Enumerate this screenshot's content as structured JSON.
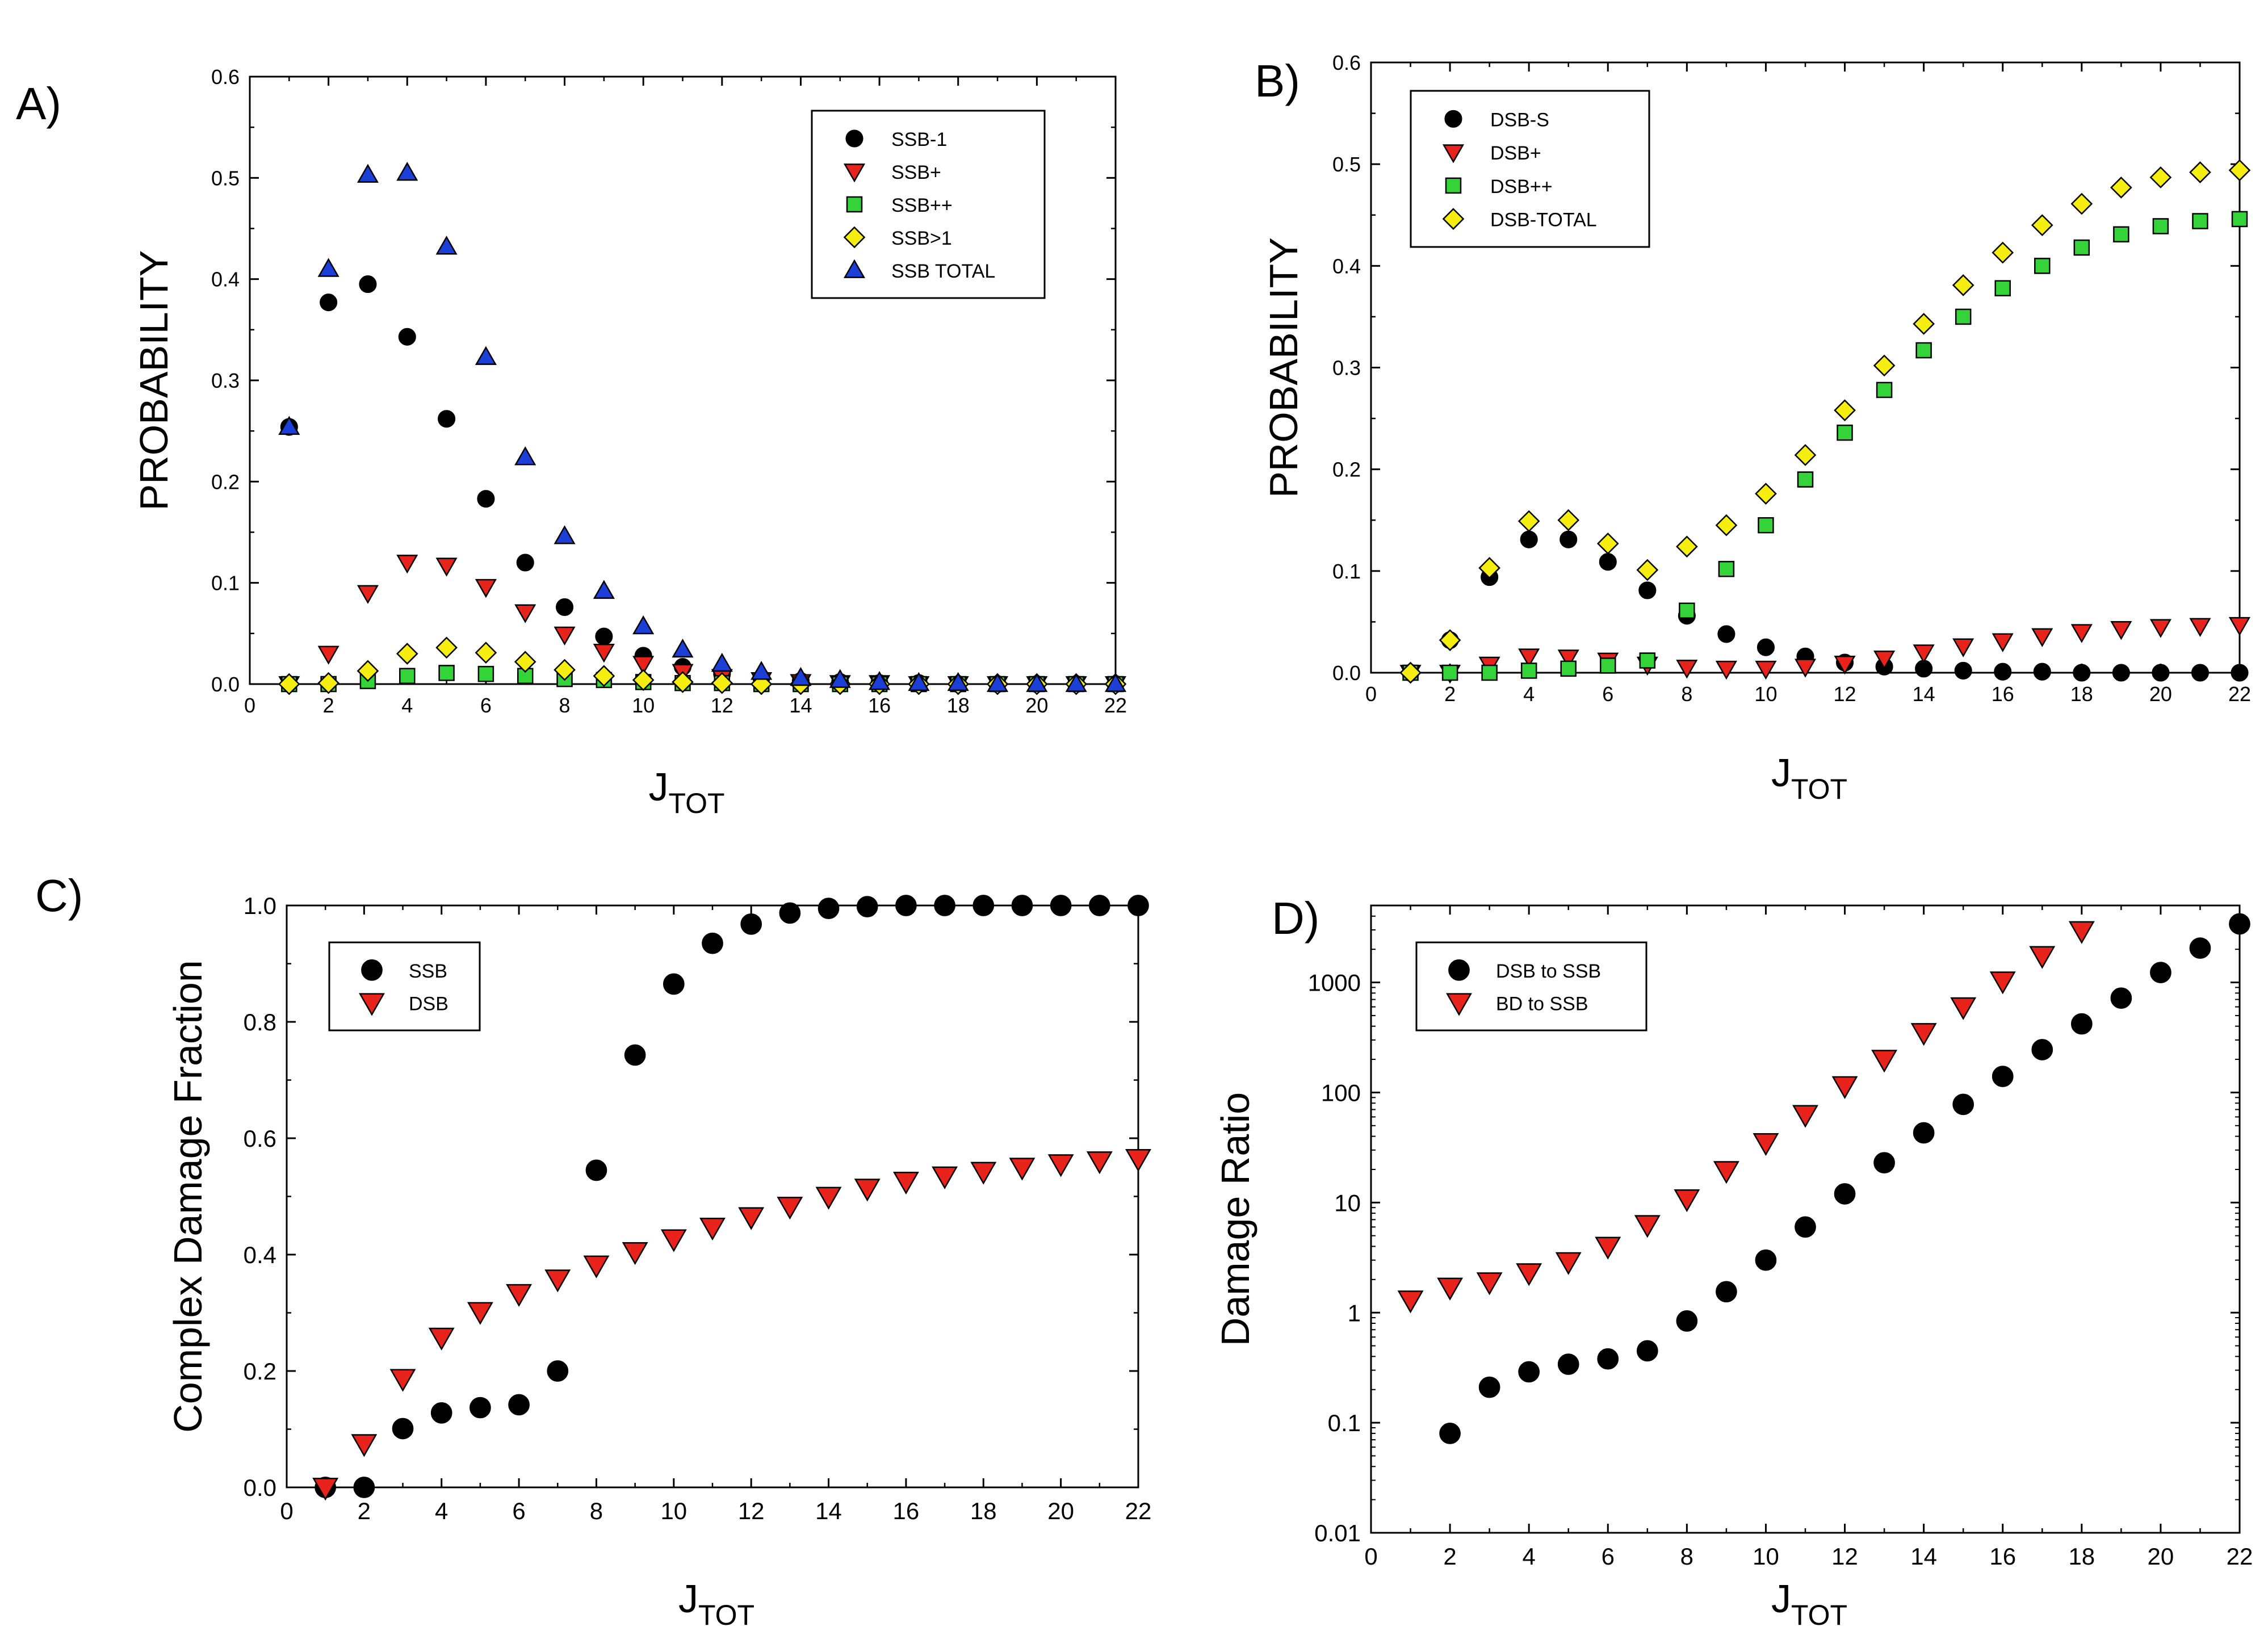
{
  "figure": {
    "colors": {
      "black": "#000000",
      "red": "#e8231c",
      "green": "#35d33a",
      "yellow": "#f5ee10",
      "blue": "#1c3fd8"
    }
  },
  "chart_data": [
    {
      "type": "scatter",
      "panel_label": "A)",
      "ylabel": "PROBABILITY",
      "xlabel_main": "J",
      "xlabel_sub": "TOT",
      "xlim": [
        0,
        22
      ],
      "ylim": [
        0,
        0.6
      ],
      "yscale": "linear",
      "xticks": [
        0,
        2,
        4,
        6,
        8,
        10,
        12,
        14,
        16,
        18,
        20,
        22
      ],
      "xtick_labels": [
        "0",
        "2",
        "4",
        "6",
        "8",
        "10",
        "12",
        "14",
        "16",
        "18",
        "20",
        "22"
      ],
      "yticks": [
        0,
        0.1,
        0.2,
        0.3,
        0.4,
        0.5,
        0.6
      ],
      "ytick_labels": [
        "0.0",
        "0.1",
        "0.2",
        "0.3",
        "0.4",
        "0.5",
        "0.6"
      ],
      "legend_position": "top-right",
      "x": [
        1,
        2,
        3,
        4,
        5,
        6,
        7,
        8,
        9,
        10,
        11,
        12,
        13,
        14,
        15,
        16,
        17,
        18,
        19,
        20,
        21,
        22
      ],
      "series": [
        {
          "name": "SSB-1",
          "marker": "circle",
          "color": "black",
          "values": [
            0.254,
            0.377,
            0.395,
            0.343,
            0.262,
            0.183,
            0.12,
            0.076,
            0.047,
            0.028,
            0.017,
            0.01,
            0.006,
            0.003,
            0.002,
            0.001,
            0.001,
            0.0,
            0.0,
            0.0,
            0.0,
            0.0
          ]
        },
        {
          "name": "SSB+",
          "marker": "triangle-down",
          "color": "red",
          "values": [
            0.0,
            0.03,
            0.09,
            0.12,
            0.117,
            0.096,
            0.071,
            0.049,
            0.032,
            0.02,
            0.012,
            0.007,
            0.004,
            0.002,
            0.001,
            0.001,
            0.0,
            0.0,
            0.0,
            0.0,
            0.0,
            0.0
          ]
        },
        {
          "name": "SSB++",
          "marker": "square",
          "color": "green",
          "values": [
            0.0,
            0.0,
            0.003,
            0.008,
            0.011,
            0.01,
            0.008,
            0.005,
            0.004,
            0.002,
            0.001,
            0.001,
            0.0,
            0.0,
            0.0,
            0.0,
            0.0,
            0.0,
            0.0,
            0.0,
            0.0,
            0.0
          ]
        },
        {
          "name": "SSB>1",
          "marker": "diamond",
          "color": "yellow",
          "values": [
            0.0,
            0.001,
            0.013,
            0.03,
            0.036,
            0.031,
            0.022,
            0.014,
            0.008,
            0.004,
            0.002,
            0.001,
            0.0,
            0.0,
            0.0,
            0.0,
            0.0,
            0.0,
            0.0,
            0.0,
            0.0,
            0.0
          ]
        },
        {
          "name": "SSB TOTAL",
          "marker": "triangle-up",
          "color": "blue",
          "values": [
            0.254,
            0.41,
            0.503,
            0.505,
            0.432,
            0.323,
            0.224,
            0.146,
            0.092,
            0.057,
            0.034,
            0.02,
            0.012,
            0.006,
            0.004,
            0.002,
            0.001,
            0.001,
            0.0,
            0.0,
            0.0,
            0.0
          ]
        }
      ]
    },
    {
      "type": "scatter",
      "panel_label": "B)",
      "ylabel": "PROBABILITY",
      "xlabel_main": "J",
      "xlabel_sub": "TOT",
      "xlim": [
        0,
        22
      ],
      "ylim": [
        0,
        0.6
      ],
      "yscale": "linear",
      "xticks": [
        0,
        2,
        4,
        6,
        8,
        10,
        12,
        14,
        16,
        18,
        20,
        22
      ],
      "xtick_labels": [
        "0",
        "2",
        "4",
        "6",
        "8",
        "10",
        "12",
        "14",
        "16",
        "18",
        "20",
        "22"
      ],
      "yticks": [
        0,
        0.1,
        0.2,
        0.3,
        0.4,
        0.5,
        0.6
      ],
      "ytick_labels": [
        "0.0",
        "0.1",
        "0.2",
        "0.3",
        "0.4",
        "0.5",
        "0.6"
      ],
      "legend_position": "top-left",
      "x": [
        1,
        2,
        3,
        4,
        5,
        6,
        7,
        8,
        9,
        10,
        11,
        12,
        13,
        14,
        15,
        16,
        17,
        18,
        19,
        20,
        21,
        22
      ],
      "series": [
        {
          "name": "DSB-S",
          "marker": "circle",
          "color": "black",
          "values": [
            0.0,
            0.032,
            0.094,
            0.131,
            0.131,
            0.109,
            0.081,
            0.056,
            0.038,
            0.025,
            0.016,
            0.01,
            0.006,
            0.004,
            0.002,
            0.001,
            0.001,
            0.0,
            0.0,
            0.0,
            0.0,
            0.0
          ]
        },
        {
          "name": "DSB+",
          "marker": "triangle-down",
          "color": "red",
          "values": [
            0.0,
            0.0,
            0.008,
            0.016,
            0.015,
            0.012,
            0.008,
            0.005,
            0.004,
            0.004,
            0.006,
            0.009,
            0.014,
            0.02,
            0.026,
            0.031,
            0.036,
            0.04,
            0.043,
            0.045,
            0.046,
            0.047
          ]
        },
        {
          "name": "DSB++",
          "marker": "square",
          "color": "green",
          "values": [
            0.0,
            0.0,
            0.0,
            0.002,
            0.004,
            0.007,
            0.012,
            0.061,
            0.102,
            0.145,
            0.19,
            0.236,
            0.278,
            0.317,
            0.35,
            0.378,
            0.4,
            0.418,
            0.431,
            0.439,
            0.444,
            0.446
          ]
        },
        {
          "name": "DSB-TOTAL",
          "marker": "diamond",
          "color": "yellow",
          "values": [
            0.0,
            0.032,
            0.103,
            0.149,
            0.15,
            0.127,
            0.101,
            0.124,
            0.145,
            0.176,
            0.214,
            0.258,
            0.302,
            0.343,
            0.381,
            0.413,
            0.44,
            0.461,
            0.477,
            0.487,
            0.492,
            0.494
          ]
        }
      ]
    },
    {
      "type": "scatter",
      "panel_label": "C)",
      "ylabel": "Complex Damage Fraction",
      "xlabel_main": "J",
      "xlabel_sub": "TOT",
      "xlim": [
        0,
        22
      ],
      "ylim": [
        0,
        1.0
      ],
      "yscale": "linear",
      "xticks": [
        0,
        2,
        4,
        6,
        8,
        10,
        12,
        14,
        16,
        18,
        20,
        22
      ],
      "xtick_labels": [
        "0",
        "2",
        "4",
        "6",
        "8",
        "10",
        "12",
        "14",
        "16",
        "18",
        "20",
        "22"
      ],
      "yticks": [
        0,
        0.2,
        0.4,
        0.6,
        0.8,
        1.0
      ],
      "ytick_labels": [
        "0.0",
        "0.2",
        "0.4",
        "0.6",
        "0.8",
        "1.0"
      ],
      "legend_position": "top-left",
      "x": [
        1,
        2,
        3,
        4,
        5,
        6,
        7,
        8,
        9,
        10,
        11,
        12,
        13,
        14,
        15,
        16,
        17,
        18,
        19,
        20,
        21,
        22
      ],
      "series": [
        {
          "name": "SSB",
          "marker": "circle",
          "color": "black",
          "values": [
            0.0,
            0.0,
            0.101,
            0.128,
            0.137,
            0.142,
            0.2,
            0.545,
            0.743,
            0.865,
            0.935,
            0.968,
            0.987,
            0.995,
            0.998,
            1.0,
            1.0,
            1.0,
            1.0,
            1.0,
            1.0,
            1.0
          ]
        },
        {
          "name": "DSB",
          "marker": "triangle-down",
          "color": "red",
          "values": [
            0.0,
            0.075,
            0.187,
            0.258,
            0.302,
            0.333,
            0.358,
            0.382,
            0.405,
            0.427,
            0.447,
            0.465,
            0.483,
            0.5,
            0.514,
            0.526,
            0.535,
            0.543,
            0.55,
            0.556,
            0.561,
            0.565
          ]
        }
      ]
    },
    {
      "type": "scatter",
      "panel_label": "D)",
      "ylabel": "Damage Ratio",
      "xlabel_main": "J",
      "xlabel_sub": "TOT",
      "xlim": [
        0,
        22
      ],
      "ylim": [
        0.01,
        5000
      ],
      "yscale": "log",
      "xticks": [
        0,
        2,
        4,
        6,
        8,
        10,
        12,
        14,
        16,
        18,
        20,
        22
      ],
      "xtick_labels": [
        "0",
        "2",
        "4",
        "6",
        "8",
        "10",
        "12",
        "14",
        "16",
        "18",
        "20",
        "22"
      ],
      "yticks": [
        0.01,
        0.1,
        1,
        10,
        100,
        1000
      ],
      "ytick_labels": [
        "0.01",
        "0.1",
        "1",
        "10",
        "100",
        "1000"
      ],
      "legend_position": "top-left",
      "series": [
        {
          "name": "DSB to SSB",
          "marker": "circle",
          "color": "black",
          "x": [
            2,
            3,
            4,
            5,
            6,
            7,
            8,
            9,
            10,
            11,
            12,
            13,
            14,
            15,
            16,
            17,
            18,
            19,
            20,
            21,
            22
          ],
          "values": [
            0.08,
            0.21,
            0.29,
            0.34,
            0.38,
            0.45,
            0.84,
            1.55,
            3.0,
            6.0,
            12.0,
            23.0,
            43.0,
            78.0,
            140.0,
            245.0,
            420.0,
            720.0,
            1230.0,
            2050.0,
            3400.0
          ]
        },
        {
          "name": "BD to SSB",
          "marker": "triangle-down",
          "color": "red",
          "x": [
            1,
            2,
            3,
            4,
            5,
            6,
            7,
            8,
            9,
            10,
            11,
            12,
            13,
            14,
            15,
            16,
            17,
            18
          ],
          "values": [
            1.3,
            1.7,
            1.9,
            2.3,
            2.9,
            4.0,
            6.3,
            10.8,
            19.5,
            35.0,
            63.0,
            115.0,
            200.0,
            350.0,
            600.0,
            1030.0,
            1750.0,
            2950.0
          ]
        }
      ]
    }
  ]
}
